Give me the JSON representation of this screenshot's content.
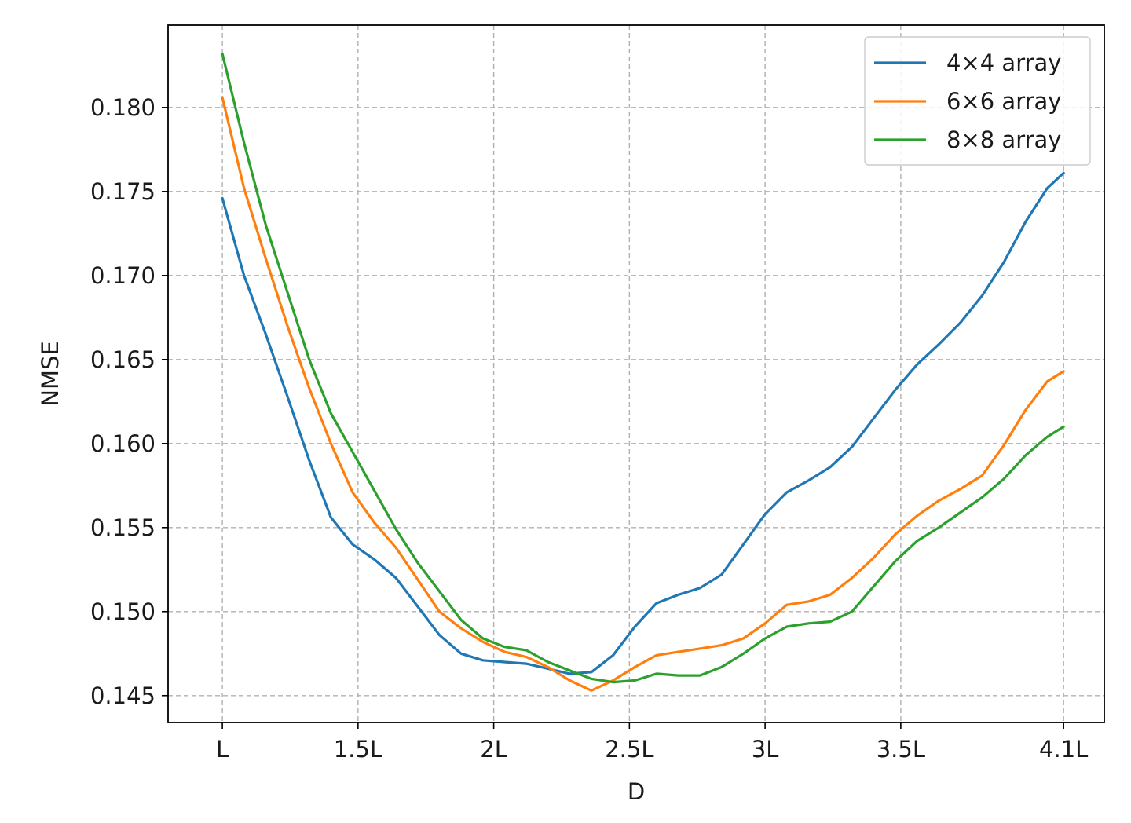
{
  "chart_data": {
    "type": "line",
    "xlabel": "D",
    "ylabel": "NMSE",
    "xlim": [
      0.8,
      4.25
    ],
    "ylim": [
      0.1434,
      0.1849
    ],
    "x_ticks": [
      {
        "value": 1.0,
        "label": "L"
      },
      {
        "value": 1.5,
        "label": "1.5L"
      },
      {
        "value": 2.0,
        "label": "2L"
      },
      {
        "value": 2.5,
        "label": "2.5L"
      },
      {
        "value": 3.0,
        "label": "3L"
      },
      {
        "value": 3.5,
        "label": "3.5L"
      },
      {
        "value": 4.1,
        "label": "4.1L"
      }
    ],
    "y_ticks": [
      {
        "value": 0.145,
        "label": "0.145"
      },
      {
        "value": 0.15,
        "label": "0.150"
      },
      {
        "value": 0.155,
        "label": "0.155"
      },
      {
        "value": 0.16,
        "label": "0.160"
      },
      {
        "value": 0.165,
        "label": "0.165"
      },
      {
        "value": 0.17,
        "label": "0.170"
      },
      {
        "value": 0.175,
        "label": "0.175"
      },
      {
        "value": 0.18,
        "label": "0.180"
      }
    ],
    "grid": true,
    "legend_position": "top-right",
    "x": [
      1.0,
      1.08,
      1.16,
      1.24,
      1.32,
      1.4,
      1.48,
      1.56,
      1.64,
      1.72,
      1.8,
      1.88,
      1.96,
      2.04,
      2.12,
      2.2,
      2.28,
      2.36,
      2.44,
      2.52,
      2.6,
      2.68,
      2.76,
      2.84,
      2.92,
      3.0,
      3.08,
      3.16,
      3.24,
      3.32,
      3.4,
      3.48,
      3.56,
      3.64,
      3.72,
      3.8,
      3.88,
      3.96,
      4.04,
      4.1
    ],
    "series": [
      {
        "name": "4×4 array",
        "color": "#1f77b4",
        "values": [
          0.1746,
          0.17,
          0.1665,
          0.1628,
          0.159,
          0.1556,
          0.154,
          0.1531,
          0.152,
          0.1503,
          0.1486,
          0.1475,
          0.1471,
          0.147,
          0.1469,
          0.1466,
          0.1463,
          0.1464,
          0.1474,
          0.1491,
          0.1505,
          0.151,
          0.1514,
          0.1522,
          0.154,
          0.1558,
          0.1571,
          0.1578,
          0.1586,
          0.1598,
          0.1615,
          0.1632,
          0.1647,
          0.1659,
          0.1672,
          0.1688,
          0.1708,
          0.1732,
          0.1752,
          0.1761
        ]
      },
      {
        "name": "6×6 array",
        "color": "#ff7f0e",
        "values": [
          0.1806,
          0.1752,
          0.171,
          0.167,
          0.1633,
          0.16,
          0.1571,
          0.1553,
          0.1538,
          0.1519,
          0.15,
          0.149,
          0.1482,
          0.1476,
          0.1473,
          0.1467,
          0.1459,
          0.1453,
          0.1459,
          0.1467,
          0.1474,
          0.1476,
          0.1478,
          0.148,
          0.1484,
          0.1493,
          0.1504,
          0.1506,
          0.151,
          0.152,
          0.1532,
          0.1546,
          0.1557,
          0.1566,
          0.1573,
          0.1581,
          0.1599,
          0.162,
          0.1637,
          0.1643
        ]
      },
      {
        "name": "8×8 array",
        "color": "#2ca02c",
        "values": [
          0.1832,
          0.1779,
          0.173,
          0.169,
          0.165,
          0.1618,
          0.1595,
          0.1572,
          0.1549,
          0.1529,
          0.1512,
          0.1495,
          0.1484,
          0.1479,
          0.1477,
          0.147,
          0.1465,
          0.146,
          0.1458,
          0.1459,
          0.1463,
          0.1462,
          0.1462,
          0.1467,
          0.1475,
          0.1484,
          0.1491,
          0.1493,
          0.1494,
          0.15,
          0.1515,
          0.153,
          0.1542,
          0.155,
          0.1559,
          0.1568,
          0.1579,
          0.1593,
          0.1604,
          0.161
        ]
      }
    ]
  }
}
